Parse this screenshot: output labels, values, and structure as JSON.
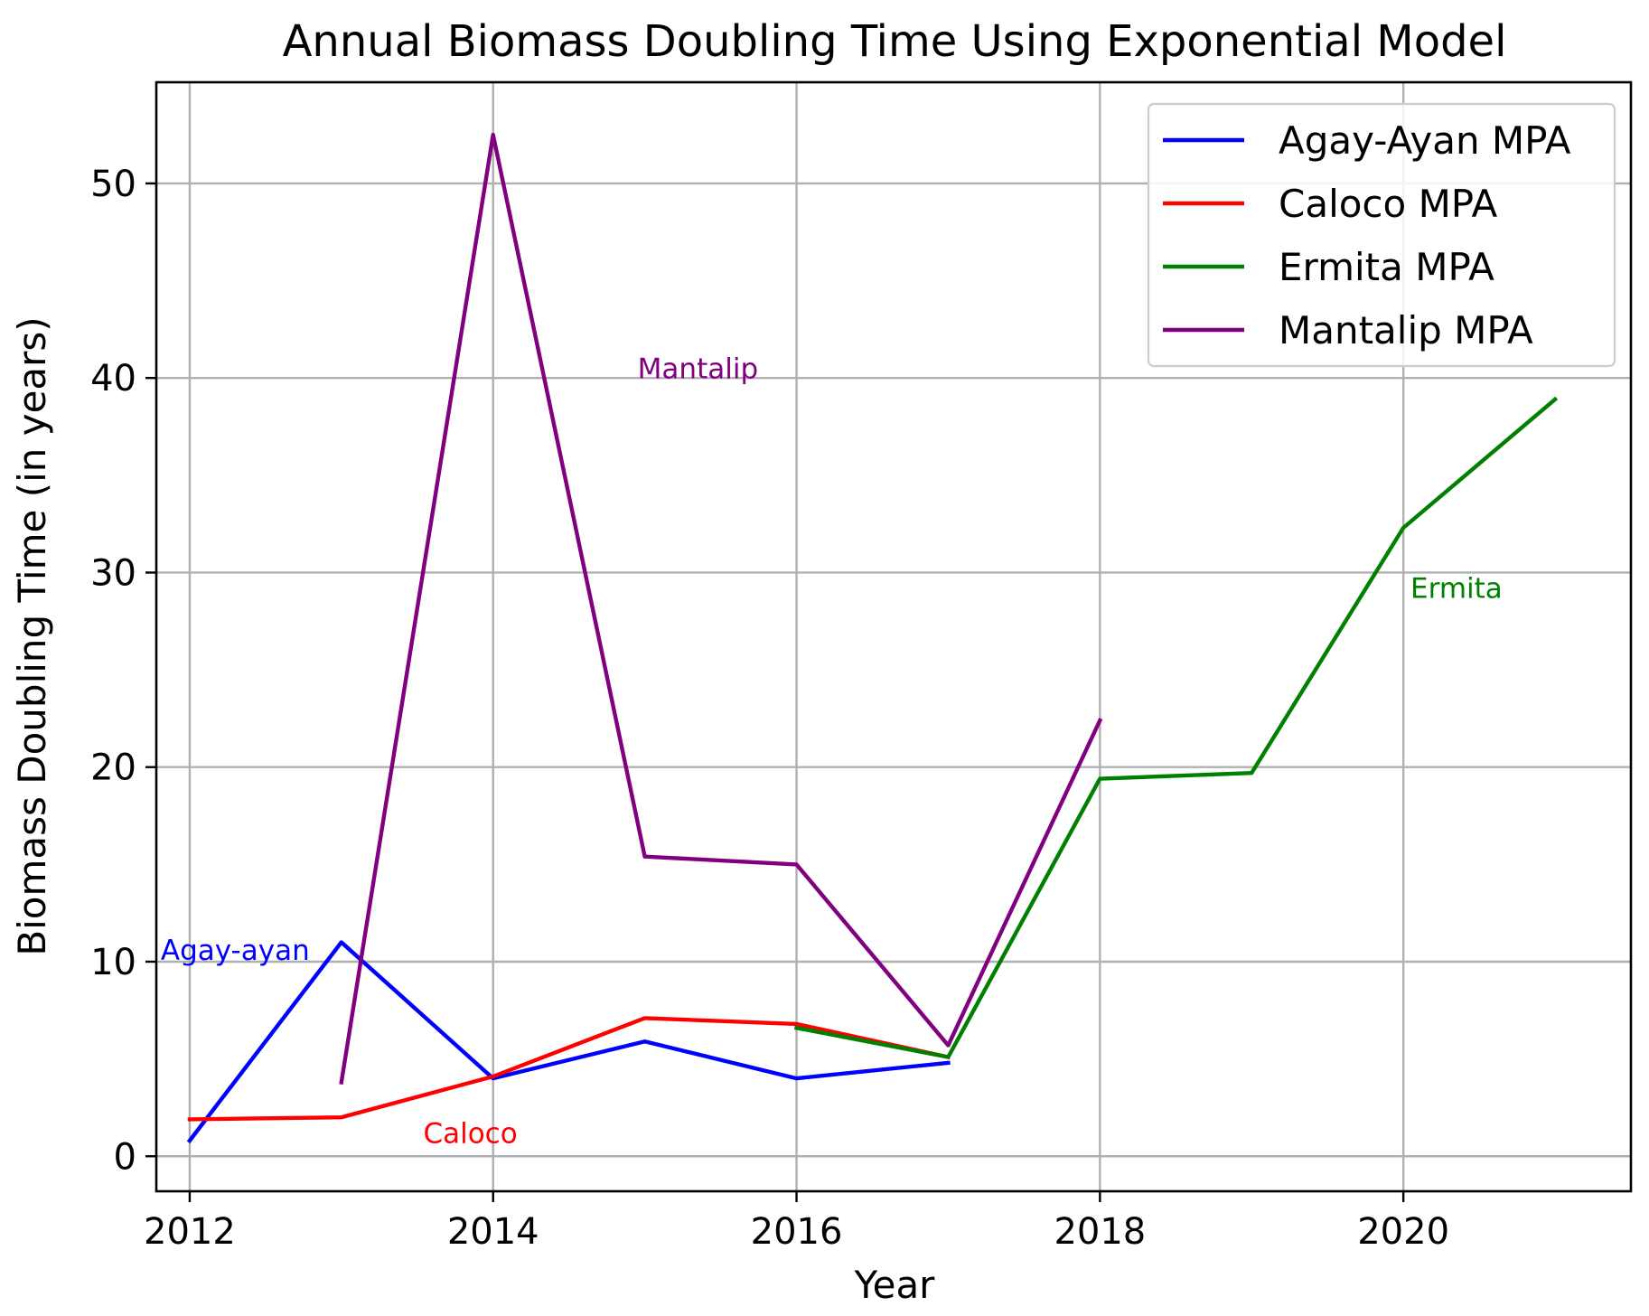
{
  "chart_data": {
    "type": "line",
    "title": "Annual Biomass Doubling Time Using Exponential Model",
    "xlabel": "Year",
    "ylabel": "Biomass Doubling Time (in years)",
    "xlim": [
      2011.78,
      2021.5
    ],
    "ylim": [
      -1.8,
      55.2
    ],
    "xticks": [
      2012,
      2014,
      2016,
      2018,
      2020
    ],
    "yticks": [
      0,
      10,
      20,
      30,
      40,
      50
    ],
    "grid": true,
    "legend_position": "top-right",
    "series": [
      {
        "name": "Agay-Ayan MPA",
        "color": "#0000ff",
        "x": [
          2012,
          2013,
          2014,
          2015,
          2016,
          2017
        ],
        "y": [
          0.8,
          11.0,
          4.0,
          5.9,
          4.0,
          4.8
        ]
      },
      {
        "name": "Caloco MPA",
        "color": "#ff0000",
        "x": [
          2012,
          2013,
          2014,
          2015,
          2016,
          2017
        ],
        "y": [
          1.9,
          2.0,
          4.1,
          7.1,
          6.8,
          5.1
        ]
      },
      {
        "name": "Ermita MPA",
        "color": "#008000",
        "x": [
          2016,
          2017,
          2018,
          2019,
          2020,
          2021
        ],
        "y": [
          6.6,
          5.1,
          19.4,
          19.7,
          32.3,
          38.9
        ]
      },
      {
        "name": "Mantalip MPA",
        "color": "#800080",
        "x": [
          2013,
          2014,
          2015,
          2016,
          2017,
          2018
        ],
        "y": [
          3.8,
          52.5,
          15.4,
          15.0,
          5.7,
          22.4
        ]
      }
    ],
    "annotations": [
      {
        "text": "Agay-ayan",
        "x": 2012.3,
        "y": 10.6,
        "color": "#0000ff"
      },
      {
        "text": "Caloco",
        "x": 2013.85,
        "y": 1.2,
        "color": "#ff0000"
      },
      {
        "text": "Mantalip",
        "x": 2015.35,
        "y": 40.5,
        "color": "#800080"
      },
      {
        "text": "Ermita",
        "x": 2020.35,
        "y": 29.2,
        "color": "#008000"
      }
    ]
  }
}
